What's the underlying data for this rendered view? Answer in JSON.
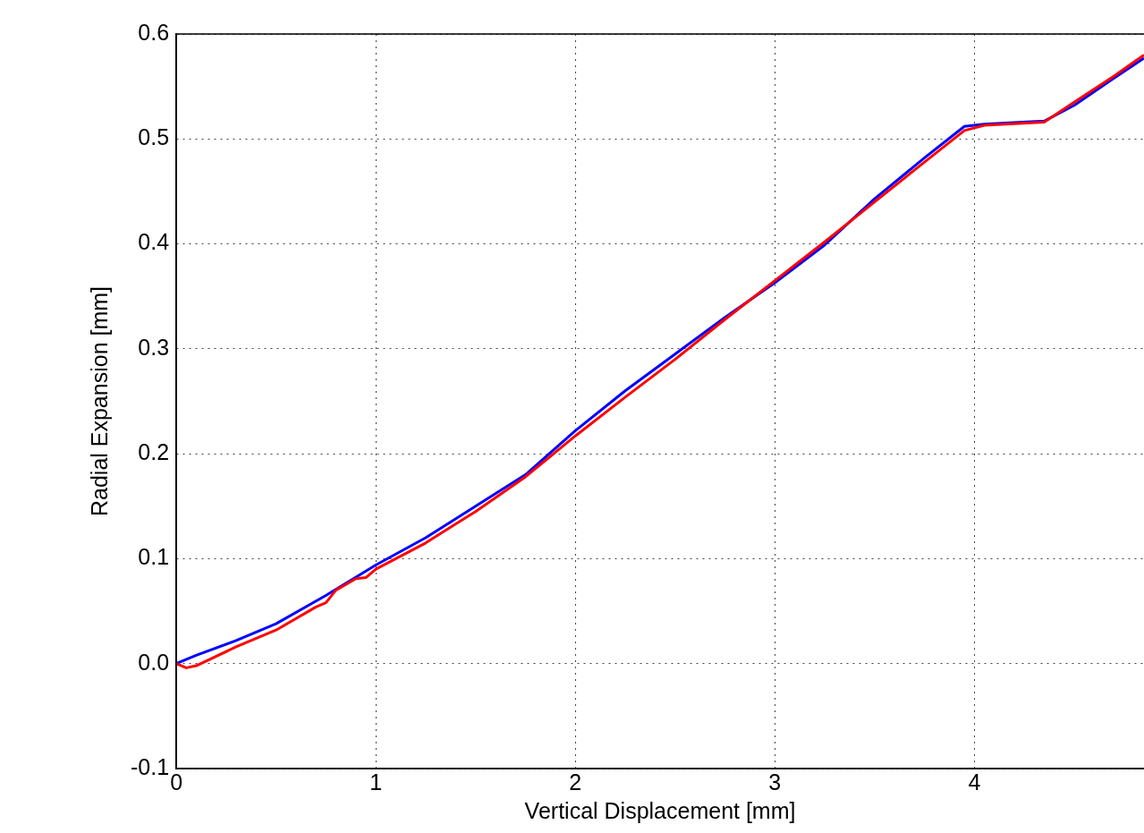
{
  "chart_data": {
    "type": "line",
    "xlabel": "Vertical Displacement [mm]",
    "ylabel": "Radial Expansion [mm]",
    "xlim": [
      0,
      4.85
    ],
    "xticks": [
      0,
      1,
      2,
      3,
      4
    ],
    "ylim": [
      -0.1,
      0.6
    ],
    "yticks": [
      {
        "value": -0.1,
        "label": "-0.1"
      },
      {
        "value": 0,
        "label": "0.0"
      },
      {
        "value": 0.1,
        "label": "0.1"
      },
      {
        "value": 0.2,
        "label": "0.2"
      },
      {
        "value": 0.3,
        "label": "0.3"
      },
      {
        "value": 0.4,
        "label": "0.4"
      },
      {
        "value": 0.5,
        "label": "0.5"
      },
      {
        "value": 0.6,
        "label": "0.6"
      }
    ],
    "grid": true,
    "legend": false,
    "marker": "none",
    "line_style": "solid",
    "series": [
      {
        "color": "#0000ff",
        "x": [
          0,
          0.1,
          0.3,
          0.5,
          0.75,
          1,
          1.25,
          1.5,
          1.75,
          2,
          2.25,
          2.5,
          2.75,
          3,
          3.25,
          3.5,
          3.75,
          3.95,
          4.05,
          4.35,
          4.5,
          4.7,
          4.85
        ],
        "values": [
          0,
          0.008,
          0.022,
          0.038,
          0.065,
          0.094,
          0.12,
          0.15,
          0.18,
          0.222,
          0.26,
          0.295,
          0.33,
          0.363,
          0.399,
          0.443,
          0.482,
          0.512,
          0.514,
          0.517,
          0.532,
          0.558,
          0.577
        ]
      },
      {
        "color": "#ff0000",
        "x": [
          0,
          0.05,
          0.1,
          0.3,
          0.5,
          0.7,
          0.75,
          0.8,
          0.9,
          0.95,
          1,
          1.25,
          1.5,
          1.75,
          2,
          2.25,
          2.5,
          2.75,
          3,
          3.25,
          3.5,
          3.75,
          3.95,
          4.05,
          4.35,
          4.5,
          4.7,
          4.85
        ],
        "values": [
          0,
          -0.004,
          -0.002,
          0.016,
          0.032,
          0.054,
          0.058,
          0.07,
          0.081,
          0.082,
          0.09,
          0.115,
          0.145,
          0.178,
          0.217,
          0.254,
          0.29,
          0.328,
          0.365,
          0.402,
          0.44,
          0.478,
          0.508,
          0.513,
          0.516,
          0.535,
          0.56,
          0.58
        ]
      }
    ]
  }
}
